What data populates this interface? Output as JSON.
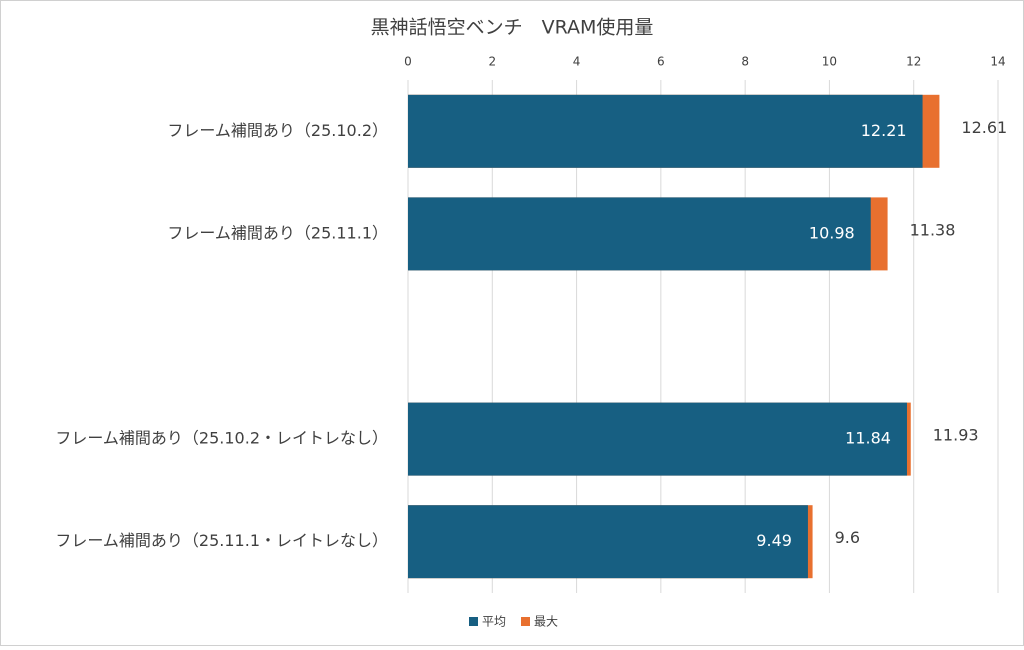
{
  "chart_data": {
    "type": "bar",
    "orientation": "horizontal",
    "title": "黒神話悟空ベンチ　VRAM使用量",
    "categories": [
      "フレーム補間あり（25.10.2）",
      "フレーム補間あり（25.11.1）",
      null,
      "フレーム補間あり（25.10.2・レイトレなし）",
      "フレーム補間あり（25.11.1・レイトレなし）"
    ],
    "series": [
      {
        "name": "平均",
        "color": "#175f82",
        "values": [
          12.21,
          10.98,
          null,
          11.84,
          9.49
        ]
      },
      {
        "name": "最大",
        "color": "#e8702f",
        "values": [
          12.61,
          11.38,
          null,
          11.93,
          9.6
        ]
      }
    ],
    "xlim": [
      0,
      14
    ],
    "xticks": [
      0,
      2,
      4,
      6,
      8,
      10,
      12,
      14
    ],
    "grid": true,
    "legend": "bottom"
  }
}
